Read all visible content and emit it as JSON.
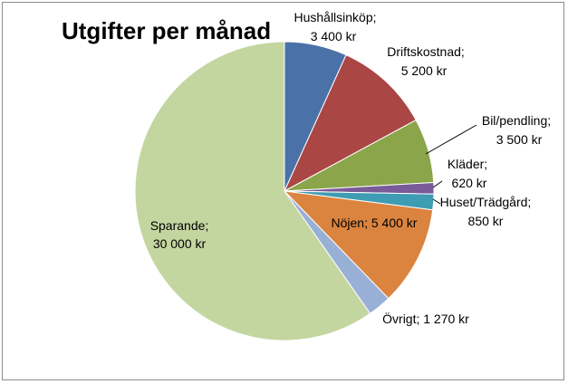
{
  "chart_data": {
    "type": "pie",
    "title": "Utgifter per månad",
    "slices": [
      {
        "name": "Hushållsinköp",
        "value": 3400,
        "value_label": "3 400 kr",
        "color": "#4a72a8"
      },
      {
        "name": "Driftskostnad",
        "value": 5200,
        "value_label": "5 200 kr",
        "color": "#aa4644"
      },
      {
        "name": "Bil/pendling",
        "value": 3500,
        "value_label": "3 500 kr",
        "color": "#8aa54a"
      },
      {
        "name": "Kläder",
        "value": 620,
        "value_label": "620 kr",
        "color": "#7a5a98"
      },
      {
        "name": "Huset/Trädgård",
        "value": 850,
        "value_label": "850 kr",
        "color": "#3e9cb3"
      },
      {
        "name": "Nöjen",
        "value": 5400,
        "value_label": "5 400 kr",
        "color": "#db8440"
      },
      {
        "name": "Övrigt",
        "value": 1270,
        "value_label": "1 270 kr",
        "color": "#99b0d6"
      },
      {
        "name": "Sparande",
        "value": 30000,
        "value_label": "30 000 kr",
        "color": "#c4d6a0"
      }
    ]
  }
}
